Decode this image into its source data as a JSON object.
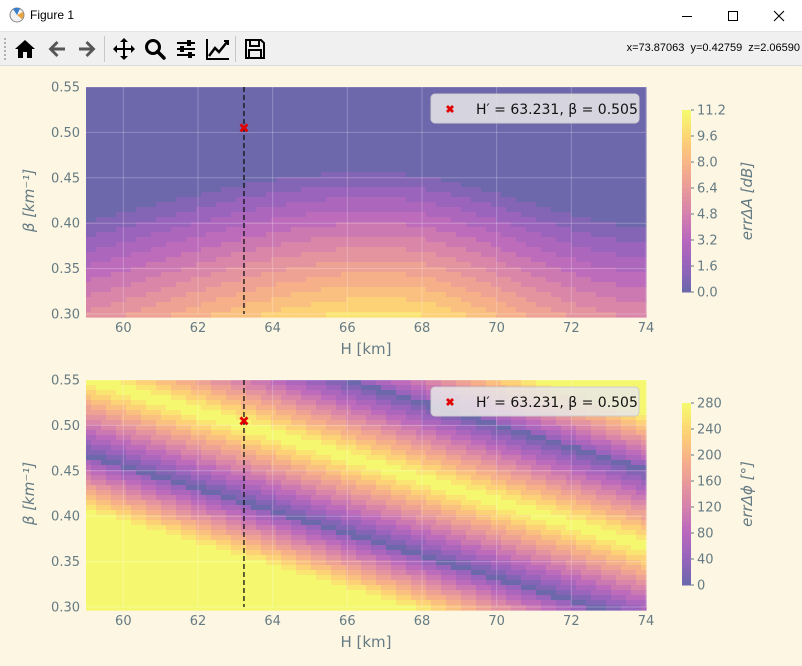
{
  "window": {
    "title": "Figure 1"
  },
  "toolbar": {
    "buttons": [
      "home-icon",
      "back-icon",
      "forward-icon",
      "pan-icon",
      "zoom-icon",
      "configure-subplots-icon",
      "edit-axes-icon",
      "save-icon"
    ],
    "coords": "x=73.87063  y=0.42759  z=2.06590"
  },
  "colors": {
    "figure_bg": "#fdf6e3",
    "marker": "#e00000",
    "vline": "#111111",
    "text": "#657b83"
  },
  "chart_data": [
    {
      "type": "contour",
      "xlabel": "H [km]",
      "ylabel": "β [km⁻¹]",
      "xlim": [
        59,
        74
      ],
      "ylim": [
        0.3,
        0.55
      ],
      "xticks": [
        "60",
        "62",
        "64",
        "66",
        "68",
        "70",
        "72",
        "74"
      ],
      "yticks": [
        "0.30",
        "0.35",
        "0.40",
        "0.45",
        "0.50",
        "0.55"
      ],
      "colorbar_label": "errΔA [dB]",
      "colorbar_ticks": [
        "0.0",
        "1.6",
        "3.2",
        "4.8",
        "6.4",
        "8.0",
        "9.6",
        "11.2"
      ],
      "colorbar_range": [
        0,
        11.2
      ],
      "marker": {
        "x": 63.231,
        "y": 0.505,
        "label": "H′ = 63.231,  β = 0.505"
      },
      "vline_x": 63.231,
      "grid": true,
      "legend_position": "top-right"
    },
    {
      "type": "contour",
      "xlabel": "H [km]",
      "ylabel": "β [km⁻¹]",
      "xlim": [
        59,
        74
      ],
      "ylim": [
        0.3,
        0.55
      ],
      "xticks": [
        "60",
        "62",
        "64",
        "66",
        "68",
        "70",
        "72",
        "74"
      ],
      "yticks": [
        "0.30",
        "0.35",
        "0.40",
        "0.45",
        "0.50",
        "0.55"
      ],
      "colorbar_label": "errΔϕ [°]",
      "colorbar_ticks": [
        "0",
        "40",
        "80",
        "120",
        "160",
        "200",
        "240",
        "280"
      ],
      "colorbar_range": [
        0,
        280
      ],
      "marker": {
        "x": 63.231,
        "y": 0.505,
        "label": "H′ = 63.231,  β = 0.505"
      },
      "vline_x": 63.231,
      "grid": true,
      "legend_position": "top-right"
    }
  ]
}
